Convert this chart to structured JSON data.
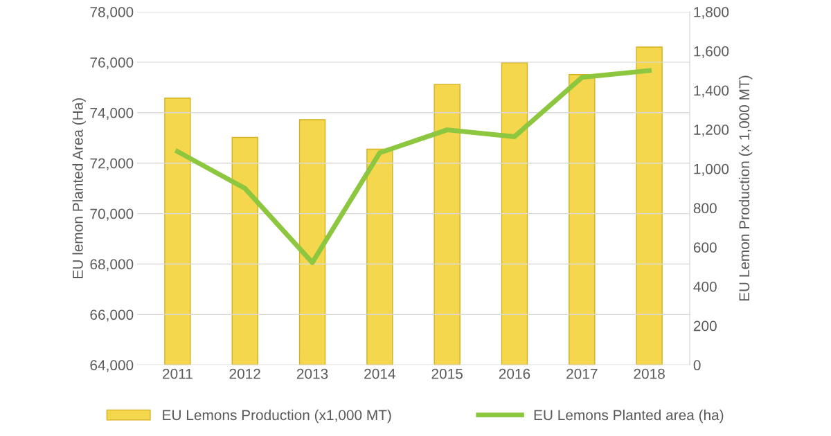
{
  "chart_data": {
    "type": "bar",
    "categories": [
      "2011",
      "2012",
      "2013",
      "2014",
      "2015",
      "2016",
      "2017",
      "2018"
    ],
    "series": [
      {
        "name": "EU Lemons Production (x1,000 MT)",
        "axis": "y2",
        "color": "#f5d74e",
        "values": [
          1360,
          1160,
          1250,
          1100,
          1430,
          1540,
          1480,
          1620
        ]
      },
      {
        "name": "EU Lemons Planted area (ha)",
        "type": "line",
        "axis": "y",
        "color": "#8dc63f",
        "values": [
          72460,
          71000,
          68060,
          72410,
          73320,
          73050,
          75400,
          75670
        ]
      }
    ],
    "ylabel": "EU lemon Planted Area (Ha)",
    "y2label": "EU Lemon Production (x 1,000 MT)",
    "ylim": [
      64000,
      78000
    ],
    "yticks": [
      {
        "value": 64000,
        "label": "64,000"
      },
      {
        "value": 66000,
        "label": "66,000"
      },
      {
        "value": 68000,
        "label": "68,000"
      },
      {
        "value": 70000,
        "label": "70,000"
      },
      {
        "value": 72000,
        "label": "72,000"
      },
      {
        "value": 74000,
        "label": "74,000"
      },
      {
        "value": 76000,
        "label": "76,000"
      },
      {
        "value": 78000,
        "label": "78,000"
      }
    ],
    "y2lim": [
      0,
      1800
    ],
    "y2ticks": [
      0,
      200,
      400,
      600,
      800,
      {
        "value": 1000,
        "label": "1,000"
      },
      {
        "value": 1200,
        "label": "1,200"
      },
      {
        "value": 1400,
        "label": "1,400"
      },
      {
        "value": 1600,
        "label": "1,600"
      },
      {
        "value": 1800,
        "label": "1,800"
      }
    ],
    "grid": "y",
    "legend": "bottom",
    "marker": "none",
    "line_style": "solid"
  }
}
